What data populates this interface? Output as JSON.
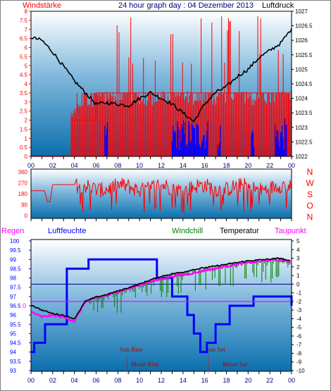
{
  "header": {
    "left_label": "Windstärke",
    "title": "24 hour graph day : 04 Dezember 2013",
    "right_label": "Luftdruck"
  },
  "top_panel": {
    "wind_ticks": [
      "0",
      "0.5",
      "1",
      "1.5",
      "2",
      "2.5",
      "3",
      "3.5",
      "4",
      "4.5",
      "5",
      "5.5",
      "6",
      "6.5",
      "7",
      "7.5",
      "8"
    ],
    "pressure_ticks": [
      "1022",
      "1022.5",
      "1023",
      "1023.5",
      "1024",
      "1024.5",
      "1025",
      "1025.5",
      "1026",
      "1026.5",
      "1027"
    ],
    "x_ticks": [
      "00",
      "02",
      "04",
      "06",
      "08",
      "10",
      "12",
      "14",
      "16",
      "18",
      "20",
      "22",
      "00"
    ],
    "colors": {
      "gust": "#ff0000",
      "wind": "#0000ff",
      "pressure": "#000000"
    }
  },
  "direction_panel": {
    "deg_ticks": [
      "0",
      "90",
      "180",
      "270",
      "360"
    ],
    "compass_labels": [
      "N",
      "W",
      "S",
      "O",
      "N"
    ],
    "color": "#ff0000"
  },
  "bottom_panel": {
    "legend": {
      "regen": "Regen",
      "luftfeuchte": "Luftfeuchte",
      "windchill": "Windchill",
      "temperatur": "Temperatur",
      "taupunkt": "Taupunkt"
    },
    "humidity_ticks": [
      "93",
      "93.5",
      "94",
      "94.5",
      "95",
      "95.5",
      "96",
      "96.5",
      "97",
      "97.5",
      "98",
      "98.5",
      "99",
      "99.5",
      "100"
    ],
    "temp_ticks": [
      "-10",
      "-9",
      "-8",
      "-7",
      "-6",
      "-5",
      "-4",
      "-3",
      "-2",
      "-1",
      "0",
      "1",
      "2",
      "3",
      "4",
      "5"
    ],
    "rain_label": "0",
    "x_ticks": [
      "00",
      "02",
      "04",
      "06",
      "08",
      "10",
      "12",
      "14",
      "16",
      "18",
      "20",
      "22",
      "00"
    ],
    "events": {
      "sun_rise": "Sun Rise",
      "sun_set": "Sun Set",
      "moon_rise": "Moon Rise",
      "moon_set": "Moon Set"
    },
    "colors": {
      "regen": "#ff00ff",
      "luftfeuchte": "#0000ff",
      "windchill": "#008000",
      "temperatur": "#000000",
      "taupunkt": "#ff00ff"
    }
  },
  "chart_data": [
    {
      "type": "line",
      "title": "24 hour graph day : 04 Dezember 2013",
      "ylabel": "Windstärke",
      "y2label": "Luftdruck",
      "xlim": [
        0,
        24
      ],
      "ylim": [
        0,
        8
      ],
      "y2lim": [
        1022,
        1027
      ],
      "series": [
        {
          "name": "Luftdruck",
          "axis": "right",
          "x": [
            0,
            1,
            2,
            3,
            4,
            5,
            6,
            7,
            8,
            9,
            10,
            11,
            12,
            13,
            14,
            15,
            16,
            17,
            18,
            19,
            20,
            21,
            22,
            23,
            24
          ],
          "values": [
            1026.1,
            1026.0,
            1025.6,
            1025.1,
            1024.6,
            1024.2,
            1023.8,
            1023.85,
            1023.8,
            1023.75,
            1024.0,
            1024.2,
            1024.0,
            1023.8,
            1023.5,
            1023.2,
            1023.8,
            1024.2,
            1024.4,
            1024.75,
            1025.0,
            1025.4,
            1025.65,
            1025.9,
            1026.4
          ]
        }
      ]
    },
    {
      "type": "line",
      "title": "",
      "ylabel": "",
      "xlim": [
        0,
        24
      ],
      "ylim": [
        0,
        360
      ],
      "series": [
        {
          "name": "",
          "x": [
            0,
            0.5,
            1.5,
            2,
            3,
            4,
            4.5,
            5,
            6,
            8,
            10,
            12,
            14,
            16,
            18,
            20,
            22,
            24
          ],
          "values": [
            205,
            205,
            115,
            260,
            260,
            245,
            75,
            160,
            220,
            240,
            230,
            250,
            180,
            230,
            200,
            240,
            250,
            210
          ]
        }
      ]
    },
    {
      "type": "line",
      "title": "",
      "xlim": [
        0,
        24
      ],
      "ylim": [
        93,
        100
      ],
      "y2lim": [
        -10,
        5
      ],
      "series": [
        {
          "name": "Luftfeuchte",
          "axis": "left",
          "x": [
            0,
            0.3,
            1.3,
            3.3,
            5.3,
            11.3,
            11.6,
            13.0,
            14.4,
            15.0,
            15.6,
            16.2,
            17.0,
            18.3,
            20.5,
            23.3,
            24
          ],
          "values": [
            94,
            94.5,
            95.5,
            98.5,
            99,
            99,
            98,
            97,
            96,
            95,
            94,
            94.5,
            95.5,
            96.5,
            97,
            97,
            96.5
          ]
        },
        {
          "name": "Temperatur",
          "axis": "right",
          "x": [
            0,
            1,
            2,
            3,
            4,
            5,
            6,
            7,
            8,
            9,
            10,
            11,
            12,
            13,
            14,
            15,
            16,
            17,
            18,
            19,
            20,
            21,
            22,
            23,
            24
          ],
          "values": [
            -2.4,
            -3.0,
            -3.4,
            -3.6,
            -4.0,
            -2.0,
            -1.5,
            -1.2,
            -0.8,
            -0.4,
            0.0,
            0.5,
            0.9,
            1.2,
            1.4,
            1.7,
            1.9,
            2.1,
            2.3,
            2.5,
            2.7,
            2.8,
            2.9,
            3.0,
            2.6
          ]
        },
        {
          "name": "Taupunkt",
          "axis": "right",
          "x": [
            0,
            1,
            2,
            3,
            4,
            5,
            6,
            7,
            8,
            9,
            10,
            11,
            12,
            13,
            14,
            15,
            16,
            17,
            18,
            19,
            20,
            21,
            22,
            23,
            24
          ],
          "values": [
            -3.2,
            -3.8,
            -3.6,
            -3.8,
            -4.3,
            -2.0,
            -1.6,
            -1.3,
            -0.9,
            -0.5,
            -0.1,
            0.3,
            0.6,
            0.9,
            1.1,
            1.3,
            1.6,
            1.8,
            2.1,
            2.3,
            2.5,
            2.6,
            2.8,
            2.8,
            2.5
          ]
        },
        {
          "name": "Windchill",
          "axis": "right",
          "x": [
            5.5,
            7,
            9,
            11,
            12.5,
            14,
            16,
            18,
            20,
            22,
            23.5
          ],
          "values": [
            -3.5,
            -2.5,
            -2.0,
            -1.3,
            -1.5,
            -0.5,
            0.0,
            0.5,
            1.0,
            2.0,
            2.3
          ]
        },
        {
          "name": "Regen",
          "axis": "right",
          "x": [
            0,
            24
          ],
          "values": [
            -2,
            -2
          ]
        }
      ]
    }
  ]
}
